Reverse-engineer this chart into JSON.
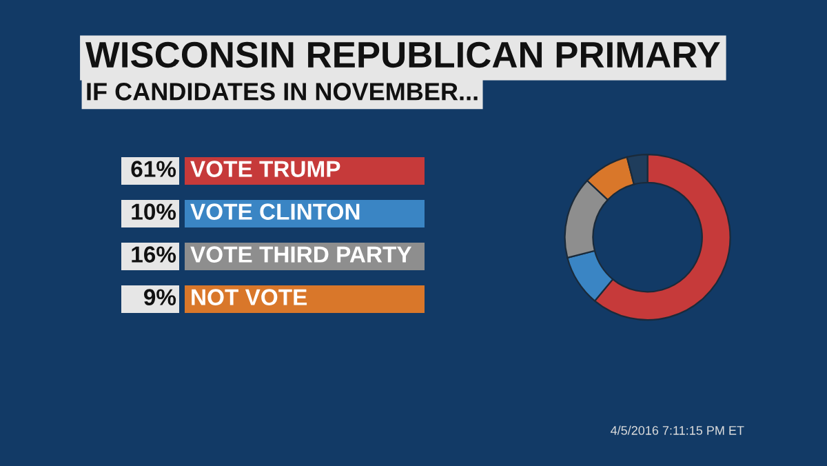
{
  "chart_data": {
    "type": "donut",
    "title": "WISCONSIN REPUBLICAN PRIMARY",
    "subtitle": "IF CANDIDATES IN NOVEMBER...",
    "categories": [
      "VOTE TRUMP",
      "VOTE CLINTON",
      "VOTE THIRD PARTY",
      "NOT VOTE",
      null
    ],
    "values": [
      61,
      10,
      16,
      9,
      4
    ],
    "value_labels": [
      "61%",
      "10%",
      "16%",
      "9%",
      null
    ],
    "colors": [
      "#c63a3a",
      "#3a85c4",
      "#8e8e8e",
      "#d9772a",
      "#1f3d5c"
    ],
    "legend": "left",
    "annotations": [
      "4/5/2016 7:11:15 PM ET"
    ]
  }
}
